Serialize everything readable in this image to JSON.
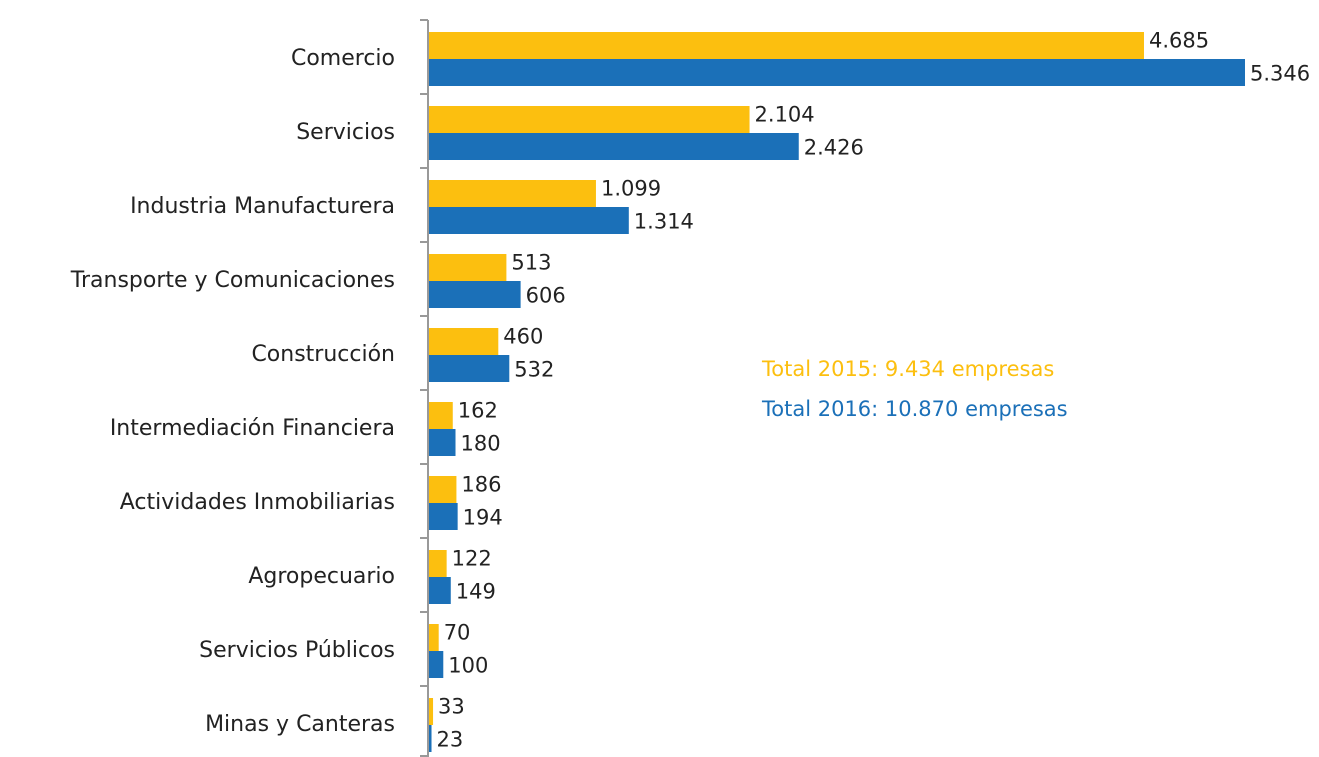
{
  "chart_data": {
    "type": "hbar",
    "categories": [
      "Comercio",
      "Servicios",
      "Industria Manufacturera",
      "Transporte y Comunicaciones",
      "Construcción",
      "Intermediación Financiera",
      "Actividades Inmobiliarias",
      "Agropecuario",
      "Servicios Públicos",
      "Minas y Canteras"
    ],
    "series": [
      {
        "color": "#fcbf0f",
        "values": [
          4685,
          2104,
          1099,
          513,
          460,
          162,
          186,
          122,
          70,
          33
        ],
        "value_labels": [
          "4.685",
          "2.104",
          "1.099",
          "513",
          "460",
          "162",
          "186",
          "122",
          "70",
          "33"
        ]
      },
      {
        "color": "#1b70b8",
        "values": [
          5346,
          2426,
          1314,
          606,
          532,
          180,
          194,
          149,
          100,
          23
        ],
        "value_labels": [
          "5.346",
          "2.426",
          "1.314",
          "606",
          "532",
          "180",
          "194",
          "149",
          "100",
          "23"
        ]
      }
    ],
    "annotations": [
      "Total 2015: 9.434 empresas",
      "Total 2016: 10.870 empresas"
    ]
  }
}
